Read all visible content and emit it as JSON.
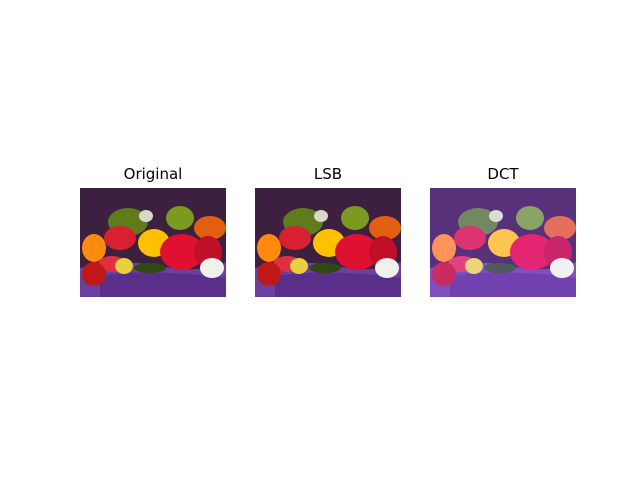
{
  "figure": {
    "panels": [
      {
        "title": "Original",
        "variant": "original"
      },
      {
        "title": "LSB",
        "variant": "lsb"
      },
      {
        "title": "DCT",
        "variant": "dct"
      }
    ]
  },
  "colors": {
    "background": "#ffffff",
    "dct_tint": "#4a2fb0"
  },
  "image_subject": "peppers"
}
